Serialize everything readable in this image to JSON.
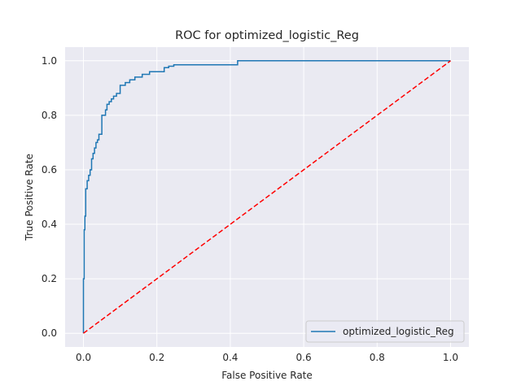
{
  "chart_data": {
    "type": "line",
    "title": "ROC for optimized_logistic_Reg",
    "xlabel": "False Positive Rate",
    "ylabel": "True Positive Rate",
    "xlim": [
      -0.05,
      1.05
    ],
    "ylim": [
      -0.05,
      1.05
    ],
    "xticks": [
      0.0,
      0.2,
      0.4,
      0.6,
      0.8,
      1.0
    ],
    "xtick_labels": [
      "0.0",
      "0.2",
      "0.4",
      "0.6",
      "0.8",
      "1.0"
    ],
    "yticks": [
      0.0,
      0.2,
      0.4,
      0.6,
      0.8,
      1.0
    ],
    "ytick_labels": [
      "0.0",
      "0.2",
      "0.4",
      "0.6",
      "0.8",
      "1.0"
    ],
    "grid": true,
    "legend_position": "lower-right",
    "series": [
      {
        "name": "optimized_logistic_Reg",
        "color": "#1f77b4",
        "style": "step",
        "x": [
          0.0,
          0.0,
          0.002,
          0.002,
          0.004,
          0.004,
          0.006,
          0.006,
          0.01,
          0.01,
          0.014,
          0.014,
          0.018,
          0.018,
          0.022,
          0.022,
          0.026,
          0.026,
          0.03,
          0.03,
          0.034,
          0.034,
          0.038,
          0.038,
          0.042,
          0.042,
          0.05,
          0.05,
          0.06,
          0.06,
          0.064,
          0.064,
          0.07,
          0.07,
          0.076,
          0.076,
          0.082,
          0.082,
          0.09,
          0.09,
          0.1,
          0.1,
          0.114,
          0.114,
          0.126,
          0.126,
          0.14,
          0.14,
          0.16,
          0.16,
          0.18,
          0.18,
          0.2,
          0.2,
          0.22,
          0.22,
          0.232,
          0.232,
          0.246,
          0.246,
          0.42,
          0.42,
          1.0
        ],
        "y": [
          0.0,
          0.2,
          0.2,
          0.38,
          0.38,
          0.43,
          0.43,
          0.53,
          0.53,
          0.56,
          0.56,
          0.58,
          0.58,
          0.6,
          0.6,
          0.64,
          0.64,
          0.66,
          0.66,
          0.68,
          0.68,
          0.7,
          0.7,
          0.71,
          0.71,
          0.73,
          0.73,
          0.8,
          0.8,
          0.82,
          0.82,
          0.84,
          0.84,
          0.85,
          0.85,
          0.86,
          0.86,
          0.87,
          0.87,
          0.88,
          0.88,
          0.91,
          0.91,
          0.92,
          0.92,
          0.93,
          0.93,
          0.94,
          0.94,
          0.95,
          0.95,
          0.96,
          0.96,
          0.96,
          0.96,
          0.975,
          0.975,
          0.98,
          0.98,
          0.985,
          0.985,
          1.0,
          1.0
        ]
      },
      {
        "color": "#ff0000",
        "style": "dashed",
        "x": [
          0.0,
          1.0
        ],
        "y": [
          0.0,
          1.0
        ]
      }
    ]
  }
}
